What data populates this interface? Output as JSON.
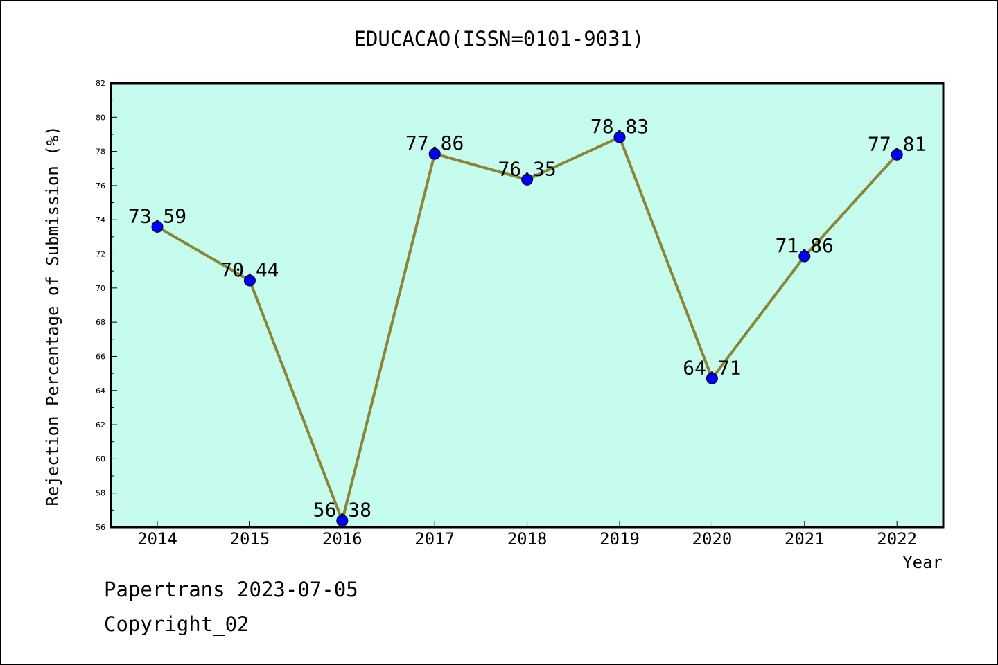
{
  "chart_data": {
    "type": "line",
    "title": "EDUCACAO(ISSN=0101-9031)",
    "xlabel": "Year",
    "ylabel": "Rejection Percentage of Submission (%)",
    "categories": [
      "2014",
      "2015",
      "2016",
      "2017",
      "2018",
      "2019",
      "2020",
      "2021",
      "2022"
    ],
    "values": [
      73.59,
      70.44,
      56.38,
      77.86,
      76.35,
      78.83,
      64.71,
      71.86,
      77.81
    ],
    "data_labels": [
      "73.59",
      "70.44",
      "56.38",
      "77.86",
      "76.35",
      "78.83",
      "64.71",
      "71.86",
      "77.81"
    ],
    "ylim": [
      56,
      82
    ],
    "yticks": [
      "56",
      "58",
      "60",
      "62",
      "64",
      "66",
      "68",
      "70",
      "72",
      "74",
      "76",
      "78",
      "80",
      "82"
    ],
    "grid": false,
    "colors": {
      "plot_background": "#c6fcee",
      "line": "#8b8637",
      "marker": "#0000ff"
    }
  },
  "footer": {
    "date_text": "Papertrans 2023-07-05",
    "copyright_text": "Copyright_02"
  }
}
